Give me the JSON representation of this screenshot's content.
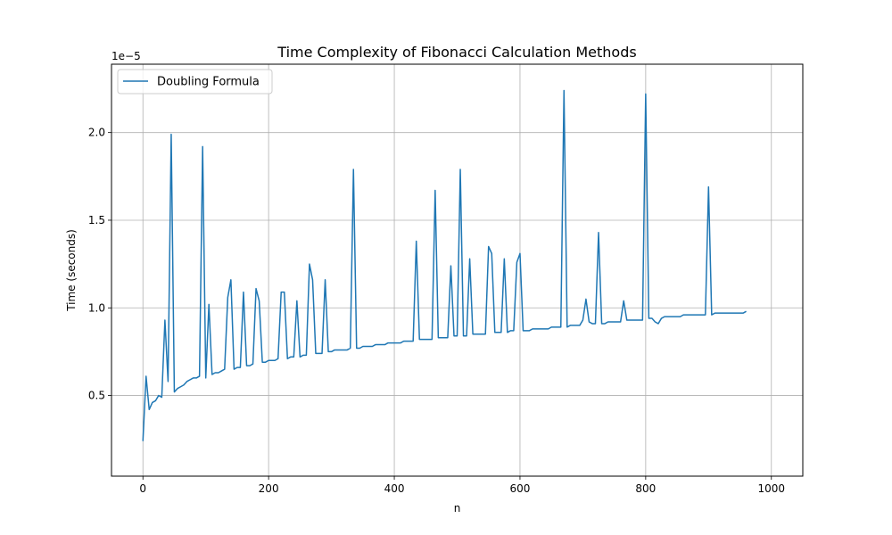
{
  "chart_data": {
    "type": "line",
    "title": "Time Complexity of Fibonacci Calculation Methods",
    "xlabel": "n",
    "ylabel": "Time (seconds)",
    "y_offset_label": "1e−5",
    "xlim": [
      -50,
      1050
    ],
    "ylim": [
      0.04,
      2.39
    ],
    "x_ticks": [
      0,
      200,
      400,
      600,
      800,
      1000
    ],
    "x_tick_labels": [
      "0",
      "200",
      "400",
      "600",
      "800",
      "1000"
    ],
    "y_ticks": [
      0.5,
      1.0,
      1.5,
      2.0
    ],
    "y_tick_labels": [
      "0.5",
      "1.0",
      "1.5",
      "2.0"
    ],
    "grid": true,
    "legend_position": "top-left",
    "colors": {
      "series": "#1f77b4",
      "grid": "#b0b0b0"
    },
    "series": [
      {
        "name": "Doubling Formula",
        "x_start": 0,
        "x_step": 5,
        "values": [
          0.24,
          0.61,
          0.42,
          0.46,
          0.47,
          0.5,
          0.49,
          0.93,
          0.58,
          1.99,
          0.52,
          0.54,
          0.55,
          0.56,
          0.58,
          0.59,
          0.6,
          0.6,
          0.61,
          1.92,
          0.6,
          1.02,
          0.62,
          0.63,
          0.63,
          0.64,
          0.65,
          1.06,
          1.16,
          0.65,
          0.66,
          0.66,
          1.09,
          0.67,
          0.67,
          0.68,
          1.11,
          1.04,
          0.69,
          0.69,
          0.7,
          0.7,
          0.7,
          0.71,
          1.09,
          1.09,
          0.71,
          0.72,
          0.72,
          1.04,
          0.72,
          0.73,
          0.73,
          1.25,
          1.16,
          0.74,
          0.74,
          0.74,
          1.16,
          0.75,
          0.75,
          0.76,
          0.76,
          0.76,
          0.76,
          0.76,
          0.77,
          1.79,
          0.77,
          0.77,
          0.78,
          0.78,
          0.78,
          0.78,
          0.79,
          0.79,
          0.79,
          0.79,
          0.8,
          0.8,
          0.8,
          0.8,
          0.8,
          0.81,
          0.81,
          0.81,
          0.81,
          1.38,
          0.82,
          0.82,
          0.82,
          0.82,
          0.82,
          1.67,
          0.83,
          0.83,
          0.83,
          0.83,
          1.24,
          0.84,
          0.84,
          1.79,
          0.84,
          0.84,
          1.28,
          0.85,
          0.85,
          0.85,
          0.85,
          0.85,
          1.35,
          1.31,
          0.86,
          0.86,
          0.86,
          1.28,
          0.86,
          0.87,
          0.87,
          1.26,
          1.31,
          0.87,
          0.87,
          0.87,
          0.88,
          0.88,
          0.88,
          0.88,
          0.88,
          0.88,
          0.89,
          0.89,
          0.89,
          0.89,
          2.24,
          0.89,
          0.9,
          0.9,
          0.9,
          0.9,
          0.93,
          1.05,
          0.92,
          0.91,
          0.91,
          1.43,
          0.91,
          0.91,
          0.92,
          0.92,
          0.92,
          0.92,
          0.92,
          1.04,
          0.93,
          0.93,
          0.93,
          0.93,
          0.93,
          0.93,
          2.22,
          0.94,
          0.94,
          0.92,
          0.91,
          0.94,
          0.95,
          0.95,
          0.95,
          0.95,
          0.95,
          0.95,
          0.96,
          0.96,
          0.96,
          0.96,
          0.96,
          0.96,
          0.96,
          0.96,
          1.69,
          0.96,
          0.97,
          0.97,
          0.97,
          0.97,
          0.97,
          0.97,
          0.97,
          0.97,
          0.97,
          0.97,
          0.98
        ]
      }
    ]
  }
}
